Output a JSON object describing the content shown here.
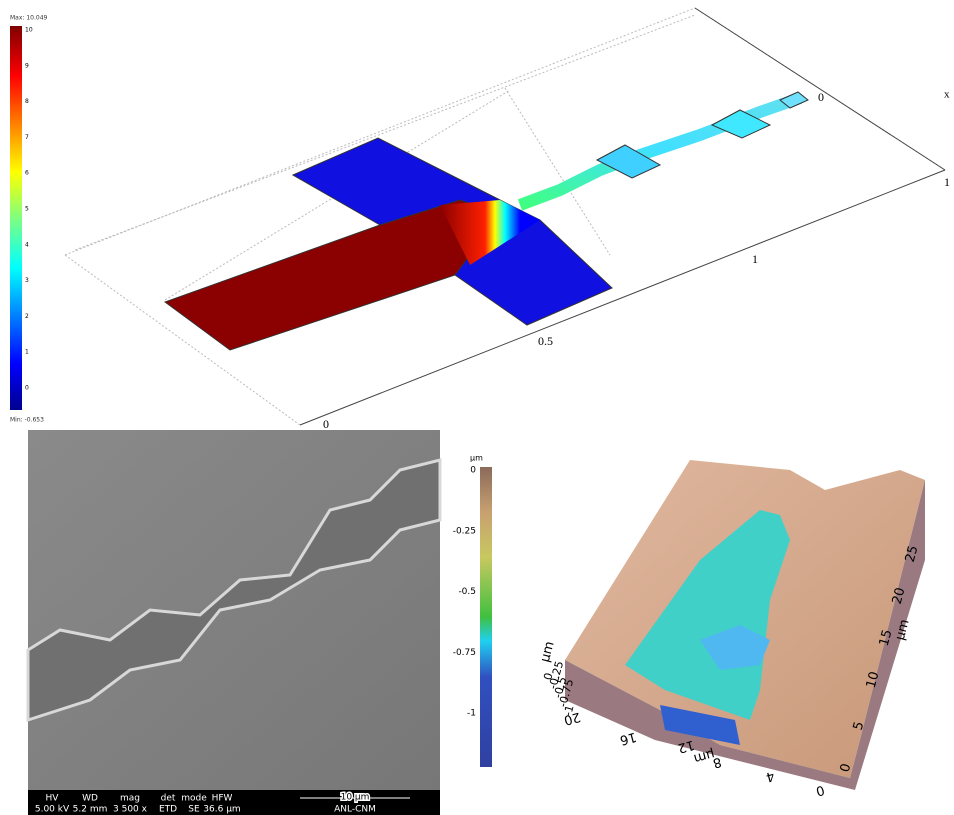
{
  "simulation": {
    "colorbar": {
      "max_label": "Max: 10.049",
      "ticks": [
        "10",
        "9",
        "8",
        "7",
        "6",
        "5",
        "4",
        "3",
        "2",
        "1",
        "0"
      ],
      "min_label": "Min: -0.653"
    },
    "axis_labels": {
      "x0": "0",
      "x05": "0.5",
      "x1": "1",
      "y0": "0",
      "y1": "1",
      "x_name": "x"
    }
  },
  "sem": {
    "info_headers": [
      "HV",
      "WD",
      "mag",
      "det",
      "mode",
      "HFW"
    ],
    "info_values": [
      "5.00 kV",
      "5.2 mm",
      "3 500 x",
      "ETD",
      "SE",
      "36.6 µm"
    ],
    "scale_bar": "10 µm",
    "lab": "ANL-CNM"
  },
  "afm": {
    "colorbar": {
      "unit": "µm",
      "ticks": [
        "0",
        "-0.25",
        "-0.5",
        "-0.75",
        "-1"
      ]
    },
    "z_axis": {
      "unit": "µm",
      "ticks": [
        "0",
        "-0.25",
        "-0.5",
        "-0.75",
        "-1"
      ]
    },
    "x_axis": {
      "unit": "µm",
      "ticks": [
        "20",
        "16",
        "12",
        "8",
        "4",
        "0"
      ]
    },
    "y_axis": {
      "unit": "µm",
      "ticks": [
        "0",
        "5",
        "10",
        "15",
        "20",
        "25"
      ]
    }
  }
}
